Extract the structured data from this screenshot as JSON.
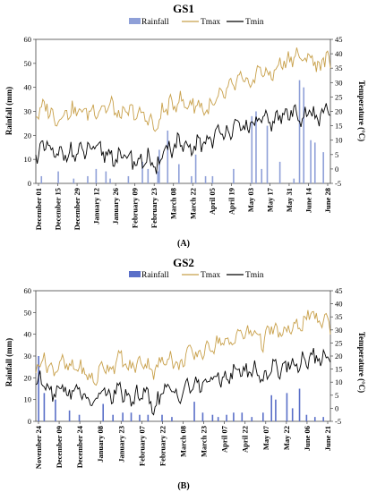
{
  "chart_data": [
    {
      "type": "line",
      "title": "GS1",
      "panel_label": "(A)",
      "ylabel": "Rainfall  (mm)",
      "y2label": "Temperature (°C)",
      "ylim": [
        0,
        60
      ],
      "y2lim": [
        -5,
        45
      ],
      "yticks": [
        "0",
        "10",
        "20",
        "30",
        "40",
        "50",
        "60"
      ],
      "y2ticks": [
        "-5",
        "0",
        "5",
        "10",
        "15",
        "20",
        "25",
        "30",
        "35",
        "40",
        "45"
      ],
      "xticks": [
        "December 01",
        "December 15",
        "December 29",
        "January 12",
        "January 26",
        "February 09",
        "February 23",
        "March 08",
        "March 22",
        "April 05",
        "April 19",
        "May 03",
        "May 17",
        "May 31",
        "June 14",
        "June 28"
      ],
      "days": 210,
      "legend": [
        "Rainfall",
        "Tmax",
        "Tmin"
      ],
      "colors": {
        "rainfall": "#8fa0d8",
        "tmax": "#c8a04a",
        "tmin": "#000000"
      },
      "tmax_keys": [
        [
          0,
          19
        ],
        [
          8,
          22
        ],
        [
          14,
          17
        ],
        [
          22,
          20
        ],
        [
          30,
          20
        ],
        [
          38,
          20
        ],
        [
          46,
          21
        ],
        [
          54,
          22
        ],
        [
          60,
          18
        ],
        [
          66,
          20
        ],
        [
          72,
          19
        ],
        [
          80,
          18
        ],
        [
          86,
          13
        ],
        [
          90,
          20
        ],
        [
          96,
          22
        ],
        [
          102,
          24
        ],
        [
          108,
          22
        ],
        [
          114,
          23
        ],
        [
          122,
          20
        ],
        [
          130,
          24
        ],
        [
          138,
          28
        ],
        [
          146,
          31
        ],
        [
          152,
          29
        ],
        [
          160,
          35
        ],
        [
          166,
          32
        ],
        [
          174,
          36
        ],
        [
          180,
          38
        ],
        [
          186,
          40
        ],
        [
          190,
          37
        ],
        [
          196,
          40
        ],
        [
          200,
          35
        ],
        [
          205,
          38
        ],
        [
          210,
          37
        ]
      ],
      "tmin_keys": [
        [
          0,
          5
        ],
        [
          8,
          8
        ],
        [
          14,
          4
        ],
        [
          22,
          6
        ],
        [
          30,
          5
        ],
        [
          38,
          7
        ],
        [
          46,
          6
        ],
        [
          54,
          5
        ],
        [
          60,
          3
        ],
        [
          66,
          5
        ],
        [
          72,
          2
        ],
        [
          80,
          4
        ],
        [
          86,
          -2
        ],
        [
          90,
          7
        ],
        [
          96,
          7
        ],
        [
          102,
          9
        ],
        [
          108,
          6
        ],
        [
          114,
          8
        ],
        [
          122,
          10
        ],
        [
          130,
          12
        ],
        [
          138,
          14
        ],
        [
          146,
          14
        ],
        [
          152,
          15
        ],
        [
          160,
          17
        ],
        [
          166,
          16
        ],
        [
          174,
          18
        ],
        [
          180,
          19
        ],
        [
          186,
          20
        ],
        [
          190,
          18
        ],
        [
          196,
          20
        ],
        [
          200,
          17
        ],
        [
          205,
          20
        ],
        [
          210,
          19
        ]
      ],
      "rain": [
        [
          4,
          3
        ],
        [
          16,
          5
        ],
        [
          27,
          2
        ],
        [
          37,
          3
        ],
        [
          43,
          6
        ],
        [
          50,
          5
        ],
        [
          53,
          2
        ],
        [
          66,
          3
        ],
        [
          76,
          9
        ],
        [
          80,
          6
        ],
        [
          87,
          5
        ],
        [
          88,
          14
        ],
        [
          94,
          22
        ],
        [
          102,
          8
        ],
        [
          111,
          3
        ],
        [
          114,
          12
        ],
        [
          121,
          3
        ],
        [
          126,
          3
        ],
        [
          141,
          6
        ],
        [
          154,
          28
        ],
        [
          157,
          30
        ],
        [
          161,
          6
        ],
        [
          165,
          24
        ],
        [
          174,
          9
        ],
        [
          184,
          2
        ],
        [
          188,
          43
        ],
        [
          191,
          40
        ],
        [
          196,
          18
        ],
        [
          199,
          17
        ],
        [
          205,
          13
        ]
      ]
    },
    {
      "type": "line",
      "title": "GS2",
      "panel_label": "(B)",
      "ylabel": "Rainfall (mm)",
      "y2label": "Temperature (°C)",
      "ylim": [
        0,
        60
      ],
      "y2lim": [
        -5,
        45
      ],
      "yticks": [
        "0",
        "10",
        "20",
        "30",
        "40",
        "50",
        "60"
      ],
      "y2ticks": [
        "-5",
        "0",
        "5",
        "10",
        "15",
        "20",
        "25",
        "30",
        "35",
        "40",
        "45"
      ],
      "xticks": [
        "November 24",
        "December 09",
        "December 24",
        "January 08",
        "January 23",
        "February 07",
        "February 22",
        "March 08",
        "March 23",
        "April 07",
        "April 22",
        "May 07",
        "May 22",
        "June 06",
        "June 21"
      ],
      "days": 210,
      "legend": [
        "Rainfall",
        "Tmax",
        "Tmin"
      ],
      "colors": {
        "rainfall": "#5a6fc8",
        "tmax": "#c8a04a",
        "tmin": "#000000"
      },
      "tmax_keys": [
        [
          0,
          16
        ],
        [
          6,
          19
        ],
        [
          12,
          14
        ],
        [
          18,
          18
        ],
        [
          24,
          15
        ],
        [
          30,
          16
        ],
        [
          36,
          13
        ],
        [
          42,
          10
        ],
        [
          48,
          17
        ],
        [
          54,
          15
        ],
        [
          60,
          20
        ],
        [
          66,
          15
        ],
        [
          72,
          17
        ],
        [
          78,
          18
        ],
        [
          84,
          14
        ],
        [
          90,
          18
        ],
        [
          96,
          20
        ],
        [
          102,
          15
        ],
        [
          108,
          22
        ],
        [
          114,
          20
        ],
        [
          120,
          22
        ],
        [
          126,
          24
        ],
        [
          132,
          26
        ],
        [
          138,
          24
        ],
        [
          144,
          29
        ],
        [
          150,
          28
        ],
        [
          156,
          30
        ],
        [
          162,
          25
        ],
        [
          168,
          31
        ],
        [
          174,
          28
        ],
        [
          180,
          30
        ],
        [
          186,
          31
        ],
        [
          192,
          34
        ],
        [
          198,
          36
        ],
        [
          202,
          32
        ],
        [
          206,
          35
        ],
        [
          210,
          32
        ]
      ],
      "tmin_keys": [
        [
          0,
          10
        ],
        [
          6,
          11
        ],
        [
          12,
          6
        ],
        [
          18,
          9
        ],
        [
          24,
          5
        ],
        [
          30,
          8
        ],
        [
          36,
          3
        ],
        [
          42,
          2
        ],
        [
          48,
          7
        ],
        [
          54,
          4
        ],
        [
          60,
          8
        ],
        [
          66,
          2
        ],
        [
          72,
          5
        ],
        [
          78,
          6
        ],
        [
          84,
          0
        ],
        [
          90,
          6
        ],
        [
          96,
          7
        ],
        [
          102,
          5
        ],
        [
          108,
          9
        ],
        [
          114,
          8
        ],
        [
          120,
          10
        ],
        [
          126,
          11
        ],
        [
          132,
          12
        ],
        [
          138,
          12
        ],
        [
          144,
          15
        ],
        [
          150,
          14
        ],
        [
          156,
          15
        ],
        [
          162,
          11
        ],
        [
          168,
          16
        ],
        [
          174,
          15
        ],
        [
          180,
          17
        ],
        [
          186,
          17
        ],
        [
          192,
          19
        ],
        [
          198,
          19
        ],
        [
          202,
          18
        ],
        [
          206,
          20
        ],
        [
          210,
          20
        ]
      ],
      "rain": [
        [
          2,
          30
        ],
        [
          6,
          13
        ],
        [
          14,
          10
        ],
        [
          24,
          5
        ],
        [
          31,
          3
        ],
        [
          48,
          8
        ],
        [
          55,
          3
        ],
        [
          62,
          4
        ],
        [
          68,
          4
        ],
        [
          74,
          3
        ],
        [
          80,
          3
        ],
        [
          90,
          3
        ],
        [
          97,
          2
        ],
        [
          113,
          9
        ],
        [
          119,
          4
        ],
        [
          126,
          3
        ],
        [
          130,
          2
        ],
        [
          136,
          3
        ],
        [
          141,
          4
        ],
        [
          147,
          4
        ],
        [
          154,
          2
        ],
        [
          162,
          4
        ],
        [
          168,
          12
        ],
        [
          171,
          10
        ],
        [
          179,
          13
        ],
        [
          183,
          6
        ],
        [
          188,
          15
        ],
        [
          193,
          3
        ],
        [
          199,
          2
        ],
        [
          205,
          2
        ]
      ]
    }
  ]
}
